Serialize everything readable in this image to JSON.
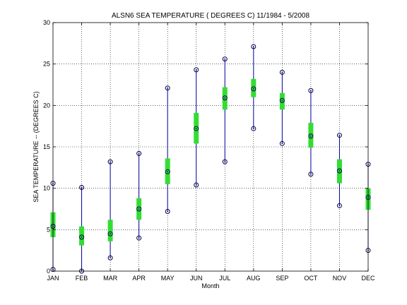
{
  "chart_data": {
    "type": "boxplot",
    "title": "ALSN6  SEA TEMPERATURE ( DEGREES C) 11/1984 - 5/2008",
    "xlabel": "Month",
    "ylabel": "SEA TEMPERATURE -- (DEGREES C)",
    "ylim": [
      0,
      30
    ],
    "yticks": [
      0,
      5,
      10,
      15,
      20,
      25,
      30
    ],
    "grid": true,
    "categories": [
      "JAN",
      "FEB",
      "MAR",
      "APR",
      "MAY",
      "JUN",
      "JUL",
      "AUG",
      "SEP",
      "OCT",
      "NOV",
      "DEC"
    ],
    "min": [
      0.2,
      0.0,
      1.6,
      4.0,
      7.2,
      10.4,
      13.2,
      17.2,
      15.4,
      11.7,
      7.9,
      2.5
    ],
    "q1": [
      4.1,
      3.1,
      3.6,
      6.2,
      10.5,
      15.4,
      19.5,
      21.0,
      19.5,
      14.9,
      10.6,
      7.4
    ],
    "median": [
      5.4,
      4.1,
      4.5,
      7.5,
      12.0,
      17.2,
      20.9,
      22.0,
      20.6,
      16.3,
      12.1,
      8.9
    ],
    "q3": [
      7.1,
      5.4,
      6.2,
      8.8,
      13.6,
      19.1,
      22.2,
      23.2,
      21.5,
      17.9,
      13.5,
      10.0
    ],
    "max": [
      10.6,
      10.1,
      13.2,
      14.2,
      22.1,
      24.3,
      25.6,
      27.1,
      24.0,
      21.8,
      16.4,
      12.9
    ],
    "colors": {
      "whisker": "#0000a0",
      "box": "#33dd33",
      "marker": "#000050",
      "grid": "#000000",
      "axes": "#000000"
    }
  }
}
